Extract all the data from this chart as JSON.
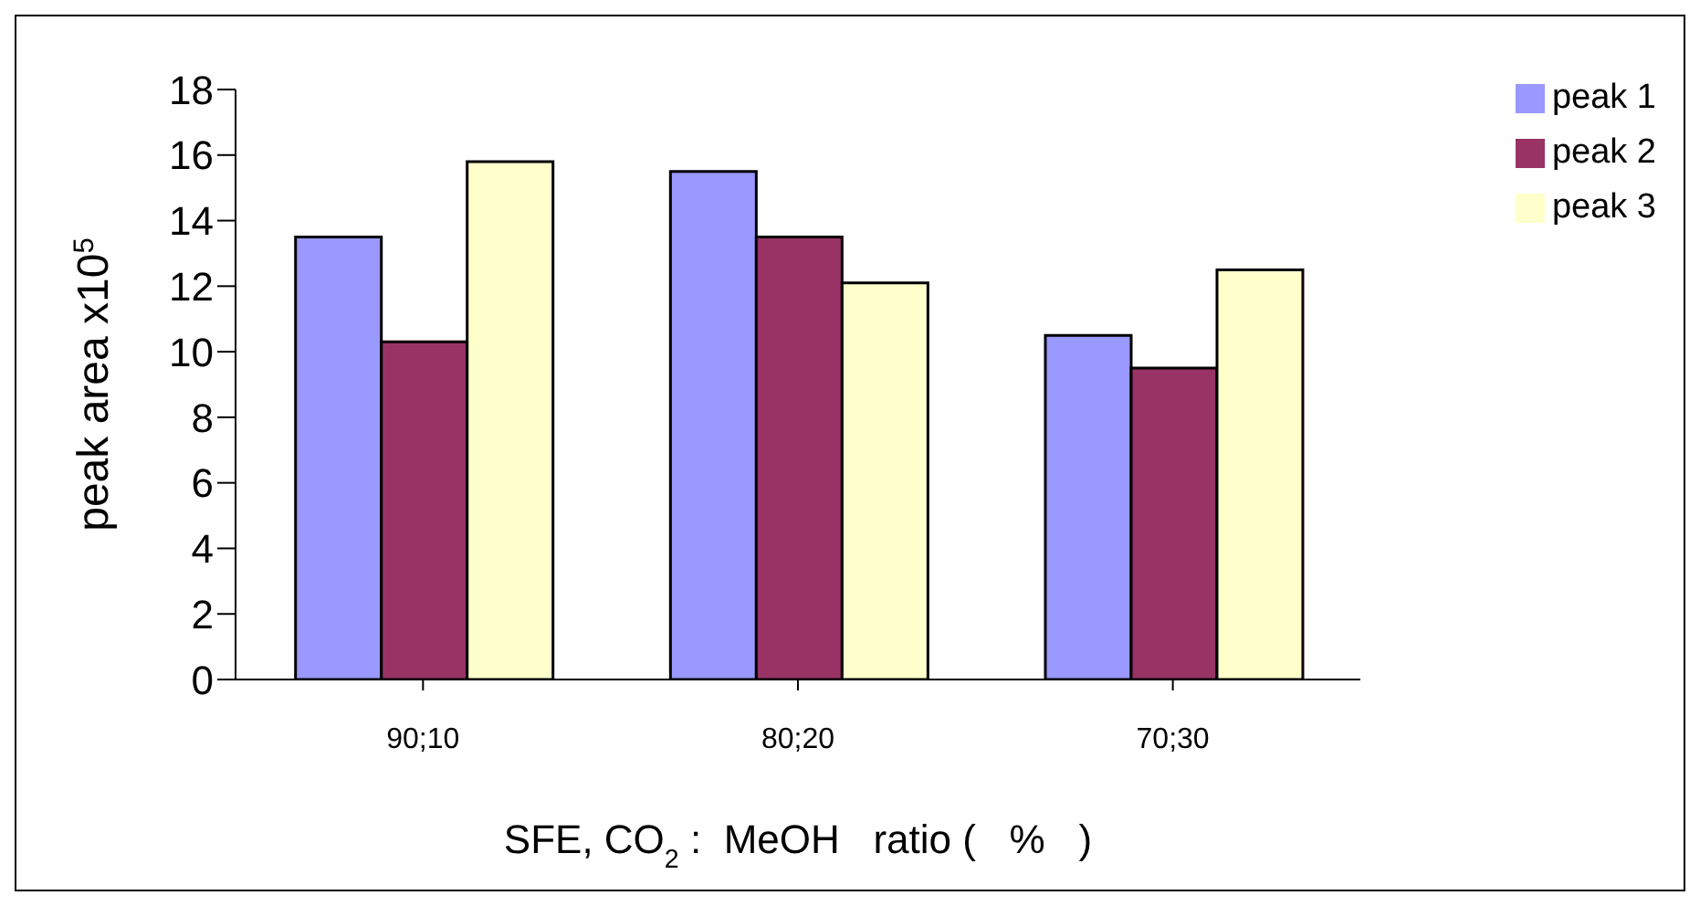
{
  "chart_data": {
    "type": "bar",
    "ylabel": "peak area x10$^{5}$",
    "xlabel": "SFE, CO$_{2}$ :  MeOH   ratio (   %   )",
    "categories": [
      "90;10",
      "80;20",
      "70;30"
    ],
    "series": [
      {
        "name": "peak 1",
        "color": "#9999ff",
        "values": [
          13.5,
          15.5,
          10.5
        ]
      },
      {
        "name": "peak 2",
        "color": "#993366",
        "values": [
          10.3,
          13.5,
          9.5
        ]
      },
      {
        "name": "peak 3",
        "color": "#ffffcc",
        "values": [
          15.8,
          12.1,
          12.5
        ]
      }
    ],
    "ylim": [
      0,
      18
    ],
    "yticks": [
      0,
      2,
      4,
      6,
      8,
      10,
      12,
      14,
      16,
      18
    ],
    "grid": false,
    "legend": "top right"
  }
}
